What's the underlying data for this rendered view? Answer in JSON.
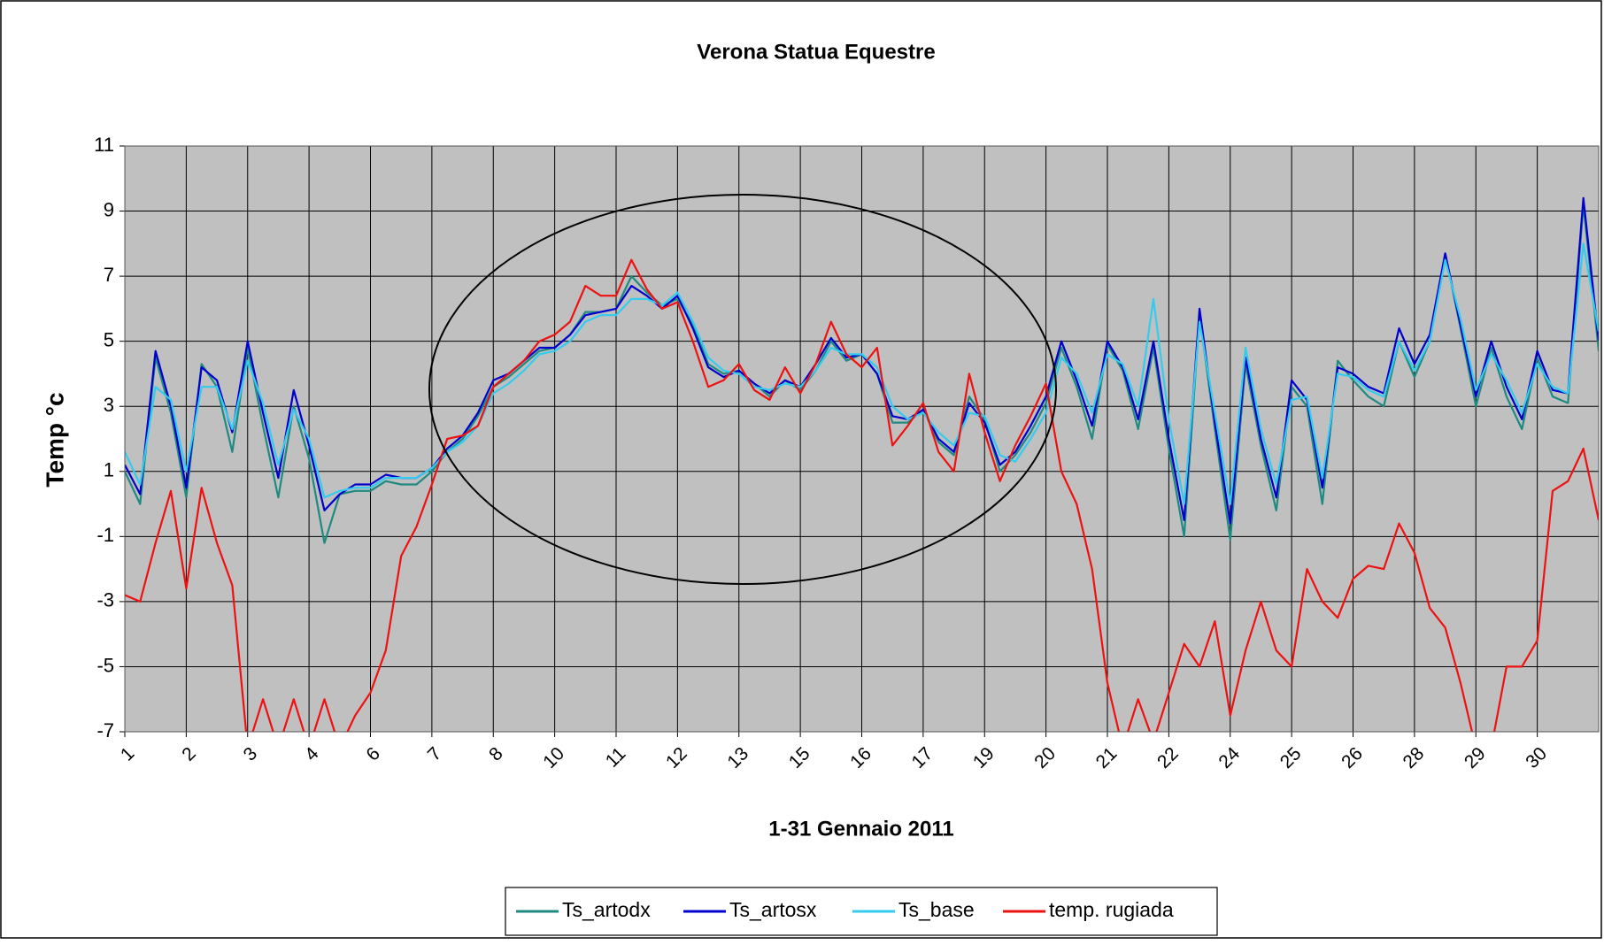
{
  "chart_data": {
    "type": "line",
    "title": "Verona Statua Equestre",
    "x_label": "1-31 Gennaio 2011",
    "y_label": "Temp °c",
    "categories": [
      "1",
      null,
      null,
      null,
      "2",
      null,
      null,
      null,
      "3",
      null,
      null,
      null,
      "4",
      null,
      null,
      null,
      "6",
      null,
      null,
      null,
      "7",
      null,
      null,
      null,
      "8",
      null,
      null,
      null,
      "10",
      null,
      null,
      null,
      "11",
      null,
      null,
      null,
      "12",
      null,
      null,
      null,
      "13",
      null,
      null,
      null,
      "15",
      null,
      null,
      null,
      "16",
      null,
      null,
      null,
      "17",
      null,
      null,
      null,
      "19",
      null,
      null,
      null,
      "20",
      null,
      null,
      null,
      "21",
      null,
      null,
      null,
      "22",
      null,
      null,
      null,
      "24",
      null,
      null,
      null,
      "25",
      null,
      null,
      null,
      "26",
      null,
      null,
      null,
      "28",
      null,
      null,
      null,
      "29",
      null,
      null,
      null,
      "30",
      null,
      null,
      null,
      null
    ],
    "ylim": [
      -7,
      11
    ],
    "yticks": [
      -7,
      -5,
      -3,
      -1,
      1,
      3,
      5,
      7,
      9,
      11
    ],
    "grid": true,
    "legend": "bottom",
    "plot_background": "#c0c0c0",
    "series": [
      {
        "name": "Ts_artodx",
        "color": "#1f8a80",
        "values": [
          1.0,
          0.0,
          4.5,
          2.8,
          0.2,
          4.3,
          3.6,
          1.6,
          4.8,
          2.4,
          0.2,
          3.0,
          1.4,
          -1.2,
          0.3,
          0.4,
          0.4,
          0.7,
          0.6,
          0.6,
          1.0,
          1.6,
          2.0,
          2.7,
          3.6,
          3.9,
          4.3,
          4.7,
          4.8,
          5.2,
          5.9,
          5.9,
          6.0,
          7.0,
          6.5,
          6.1,
          6.3,
          5.5,
          4.3,
          4.0,
          4.1,
          3.7,
          3.3,
          3.8,
          3.5,
          4.1,
          5.0,
          4.4,
          4.6,
          4.0,
          2.5,
          2.5,
          2.9,
          1.9,
          1.5,
          3.3,
          2.6,
          1.0,
          1.5,
          2.2,
          3.1,
          4.8,
          3.6,
          2.0,
          4.9,
          4.1,
          2.3,
          4.8,
          1.7,
          -1.0,
          5.8,
          2.3,
          -1.1,
          4.3,
          1.8,
          -0.2,
          3.6,
          3.0,
          0.0,
          4.4,
          3.8,
          3.3,
          3.0,
          5.0,
          3.9,
          5.0,
          7.7,
          5.4,
          3.0,
          4.8,
          3.3,
          2.3,
          4.5,
          3.3,
          3.1,
          9.2,
          4.7
        ]
      },
      {
        "name": "Ts_artosx",
        "color": "#0000cc",
        "values": [
          1.2,
          0.3,
          4.7,
          3.0,
          0.5,
          4.2,
          3.8,
          2.2,
          5.0,
          2.8,
          0.8,
          3.5,
          1.8,
          -0.2,
          0.3,
          0.6,
          0.6,
          0.9,
          0.8,
          0.8,
          1.1,
          1.7,
          2.1,
          2.8,
          3.8,
          4.0,
          4.4,
          4.8,
          4.8,
          5.2,
          5.8,
          5.9,
          6.0,
          6.7,
          6.4,
          6.0,
          6.4,
          5.4,
          4.2,
          3.9,
          4.1,
          3.7,
          3.4,
          3.8,
          3.6,
          4.3,
          5.1,
          4.5,
          4.6,
          4.0,
          2.7,
          2.6,
          2.9,
          2.0,
          1.6,
          3.1,
          2.5,
          1.2,
          1.6,
          2.4,
          3.3,
          5.0,
          3.8,
          2.4,
          5.0,
          4.2,
          2.6,
          5.0,
          2.0,
          -0.5,
          6.0,
          2.5,
          -0.6,
          4.5,
          2.0,
          0.2,
          3.8,
          3.2,
          0.5,
          4.2,
          4.0,
          3.6,
          3.4,
          5.4,
          4.3,
          5.2,
          7.7,
          5.5,
          3.3,
          5.0,
          3.6,
          2.6,
          4.7,
          3.5,
          3.4,
          9.4,
          5.0
        ]
      },
      {
        "name": "Ts_base",
        "color": "#33ccee",
        "values": [
          1.6,
          0.6,
          3.6,
          3.2,
          1.0,
          3.6,
          3.6,
          2.3,
          4.4,
          3.1,
          1.2,
          2.9,
          2.0,
          0.2,
          0.4,
          0.5,
          0.5,
          0.8,
          0.8,
          0.8,
          1.1,
          1.6,
          1.9,
          2.4,
          3.4,
          3.7,
          4.1,
          4.6,
          4.7,
          5.0,
          5.6,
          5.8,
          5.8,
          6.3,
          6.3,
          6.1,
          6.5,
          5.6,
          4.5,
          4.1,
          4.0,
          3.6,
          3.5,
          3.7,
          3.6,
          4.1,
          4.8,
          4.6,
          4.6,
          4.2,
          3.0,
          2.6,
          2.8,
          2.2,
          1.8,
          2.8,
          2.7,
          1.5,
          1.3,
          2.0,
          2.8,
          4.5,
          4.0,
          2.8,
          4.6,
          4.3,
          3.0,
          6.3,
          2.6,
          0.0,
          5.6,
          2.8,
          0.0,
          4.8,
          2.3,
          0.6,
          3.2,
          3.3,
          0.8,
          4.0,
          3.9,
          3.5,
          3.3,
          5.0,
          4.1,
          5.0,
          7.5,
          5.7,
          3.5,
          4.6,
          3.8,
          2.8,
          4.3,
          3.6,
          3.4,
          8.0,
          5.3
        ]
      },
      {
        "name": "temp. rugiada",
        "color": "#ee1111",
        "values": [
          -2.8,
          -3.0,
          -1.2,
          0.4,
          -2.6,
          0.5,
          -1.2,
          -2.5,
          -7.5,
          -6.0,
          -7.5,
          -6.0,
          -7.5,
          -6.0,
          -7.5,
          -6.5,
          -5.8,
          -4.5,
          -1.6,
          -0.7,
          0.6,
          2.0,
          2.1,
          2.4,
          3.6,
          4.0,
          4.4,
          5.0,
          5.2,
          5.6,
          6.7,
          6.4,
          6.4,
          7.5,
          6.6,
          6.0,
          6.2,
          5.0,
          3.6,
          3.8,
          4.3,
          3.5,
          3.2,
          4.2,
          3.4,
          4.3,
          5.6,
          4.6,
          4.2,
          4.8,
          1.8,
          2.4,
          3.1,
          1.6,
          1.0,
          4.0,
          2.2,
          0.7,
          1.8,
          2.7,
          3.7,
          1.0,
          0.0,
          -2.0,
          -5.5,
          -7.5,
          -6.0,
          -7.3,
          -5.8,
          -4.3,
          -5.0,
          -3.6,
          -6.5,
          -4.5,
          -3.0,
          -4.5,
          -5.0,
          -2.0,
          -3.0,
          -3.5,
          -2.3,
          -1.9,
          -2.0,
          -0.6,
          -1.5,
          -3.2,
          -3.8,
          -5.5,
          -7.5,
          -7.5,
          -5.0,
          -5.0,
          -4.2,
          0.4,
          0.7,
          1.7,
          -0.5
        ]
      }
    ]
  }
}
